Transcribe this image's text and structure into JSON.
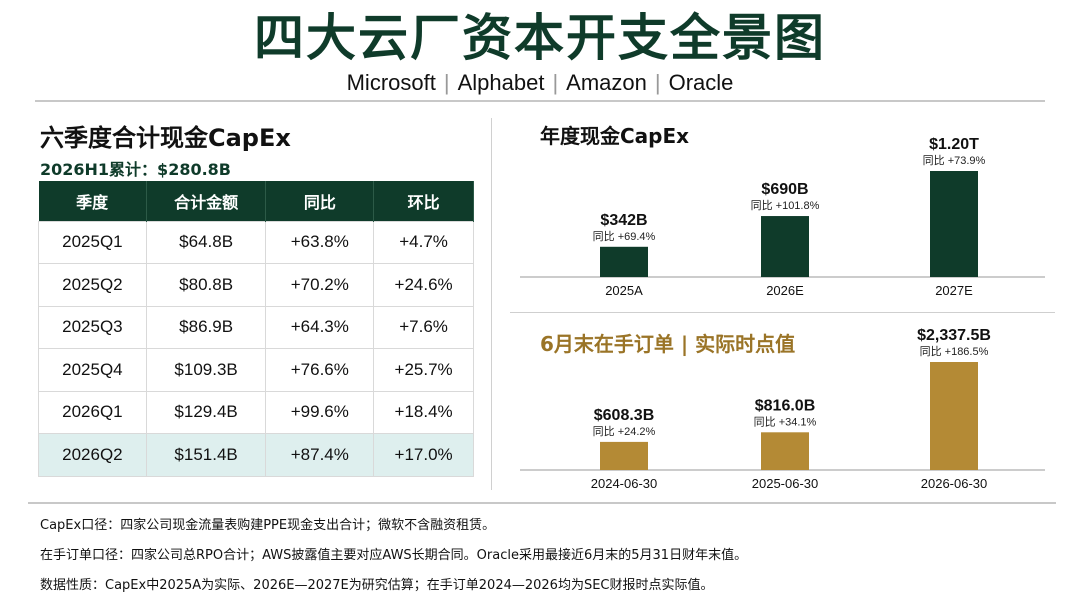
{
  "title": "四大云厂资本开支全景图",
  "companies": [
    "Microsoft",
    "Alphabet",
    "Amazon",
    "Oracle"
  ],
  "left": {
    "title": "六季度合计现金CapEx",
    "subtitle": "2026H1累计：$280.8B",
    "headers": [
      "季度",
      "合计金额",
      "同比",
      "环比"
    ],
    "rows": [
      [
        "2025Q1",
        "$64.8B",
        "+63.8%",
        "+4.7%"
      ],
      [
        "2025Q2",
        "$80.8B",
        "+70.2%",
        "+24.6%"
      ],
      [
        "2025Q3",
        "$86.9B",
        "+64.3%",
        "+7.6%"
      ],
      [
        "2025Q4",
        "$109.3B",
        "+76.6%",
        "+25.7%"
      ],
      [
        "2026Q1",
        "$129.4B",
        "+99.6%",
        "+18.4%"
      ],
      [
        "2026Q2",
        "$151.4B",
        "+87.4%",
        "+17.0%"
      ]
    ]
  },
  "chart_data": [
    {
      "type": "bar",
      "title": "年度现金CapEx",
      "categories": [
        "2025A",
        "2026E",
        "2027E"
      ],
      "values": [
        342,
        690,
        1200
      ],
      "value_labels": [
        "$342B",
        "$690B",
        "$1.20T"
      ],
      "yoy_labels": [
        "同比 +69.4%",
        "同比 +101.8%",
        "同比 +73.9%"
      ],
      "color": "#0f3b2a"
    },
    {
      "type": "bar",
      "title": "6月末在手订单 | 实际时点值",
      "categories": [
        "2024-06-30",
        "2025-06-30",
        "2026-06-30"
      ],
      "values": [
        608.3,
        816.0,
        2337.5
      ],
      "value_labels": [
        "$608.3B",
        "$816.0B",
        "$2,337.5B"
      ],
      "yoy_labels": [
        "同比 +24.2%",
        "同比 +34.1%",
        "同比 +186.5%"
      ],
      "color": "#b48a35"
    }
  ],
  "notes": [
    "CapEx口径：四家公司现金流量表购建PPE现金支出合计；微软不含融资租赁。",
    "在手订单口径：四家公司总RPO合计；AWS披露值主要对应AWS长期合同。Oracle采用最接近6月末的5月31日财年末值。",
    "数据性质：CapEx中2025A为实际、2026E—2027E为研究估算；在手订单2024—2026均为SEC财报时点实际值。"
  ],
  "colors": {
    "dark_green": "#0f3b2a",
    "gold": "#b48a35",
    "highlight_row": "#deefee"
  }
}
